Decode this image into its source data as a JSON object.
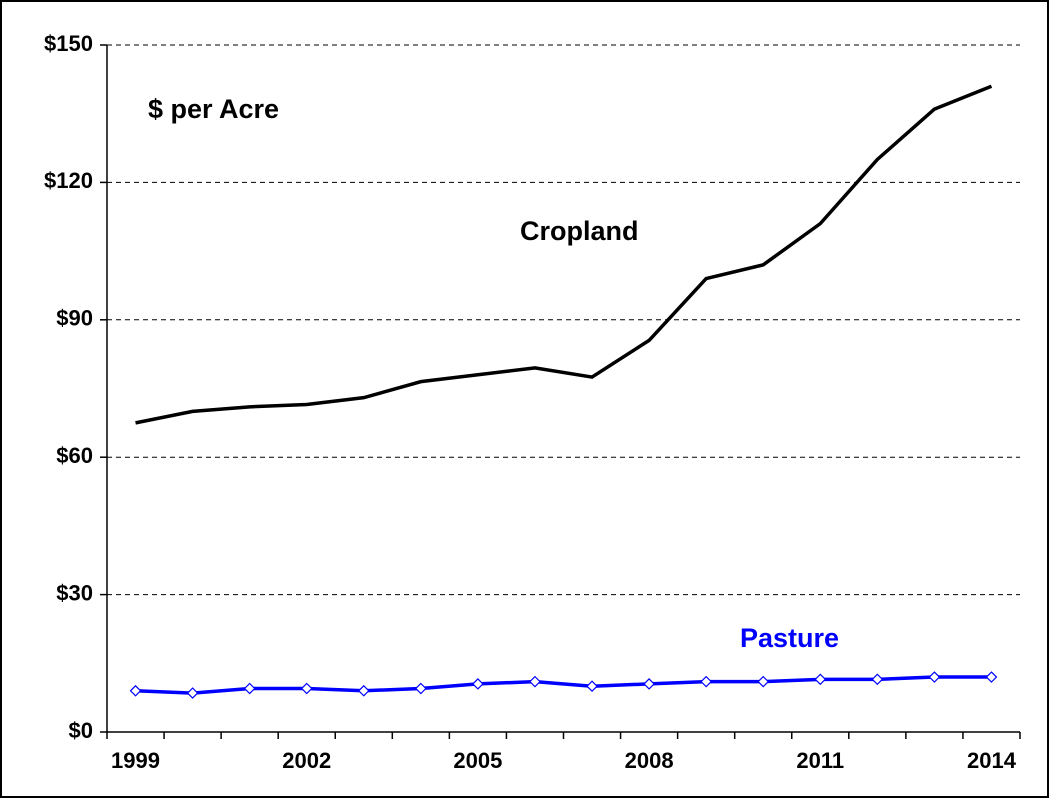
{
  "chart_data": {
    "type": "line",
    "annotation": "$ per Acre",
    "categories": [
      "1999",
      null,
      null,
      "2002",
      null,
      null,
      "2005",
      null,
      null,
      "2008",
      null,
      null,
      "2011",
      null,
      null,
      "2014"
    ],
    "series": [
      {
        "name": "Cropland",
        "color": "#000000",
        "values": [
          67.5,
          70,
          71,
          71.5,
          73,
          76.5,
          78,
          79.5,
          77.5,
          85.5,
          99,
          102,
          111,
          125,
          136,
          141
        ]
      },
      {
        "name": "Pasture",
        "color": "#0000ff",
        "marker": "diamond",
        "values": [
          9,
          8.5,
          9.5,
          9.5,
          9,
          9.5,
          10.5,
          11,
          10,
          10.5,
          11,
          11,
          11.5,
          11.5,
          12,
          12
        ]
      }
    ],
    "ylim": [
      0,
      150
    ],
    "yticks": [
      {
        "value": 0,
        "label": "$0"
      },
      {
        "value": 30,
        "label": "$30"
      },
      {
        "value": 60,
        "label": "$60"
      },
      {
        "value": 90,
        "label": "$90"
      },
      {
        "value": 120,
        "label": "$120"
      },
      {
        "value": 150,
        "label": "$150"
      }
    ],
    "grid": true
  }
}
